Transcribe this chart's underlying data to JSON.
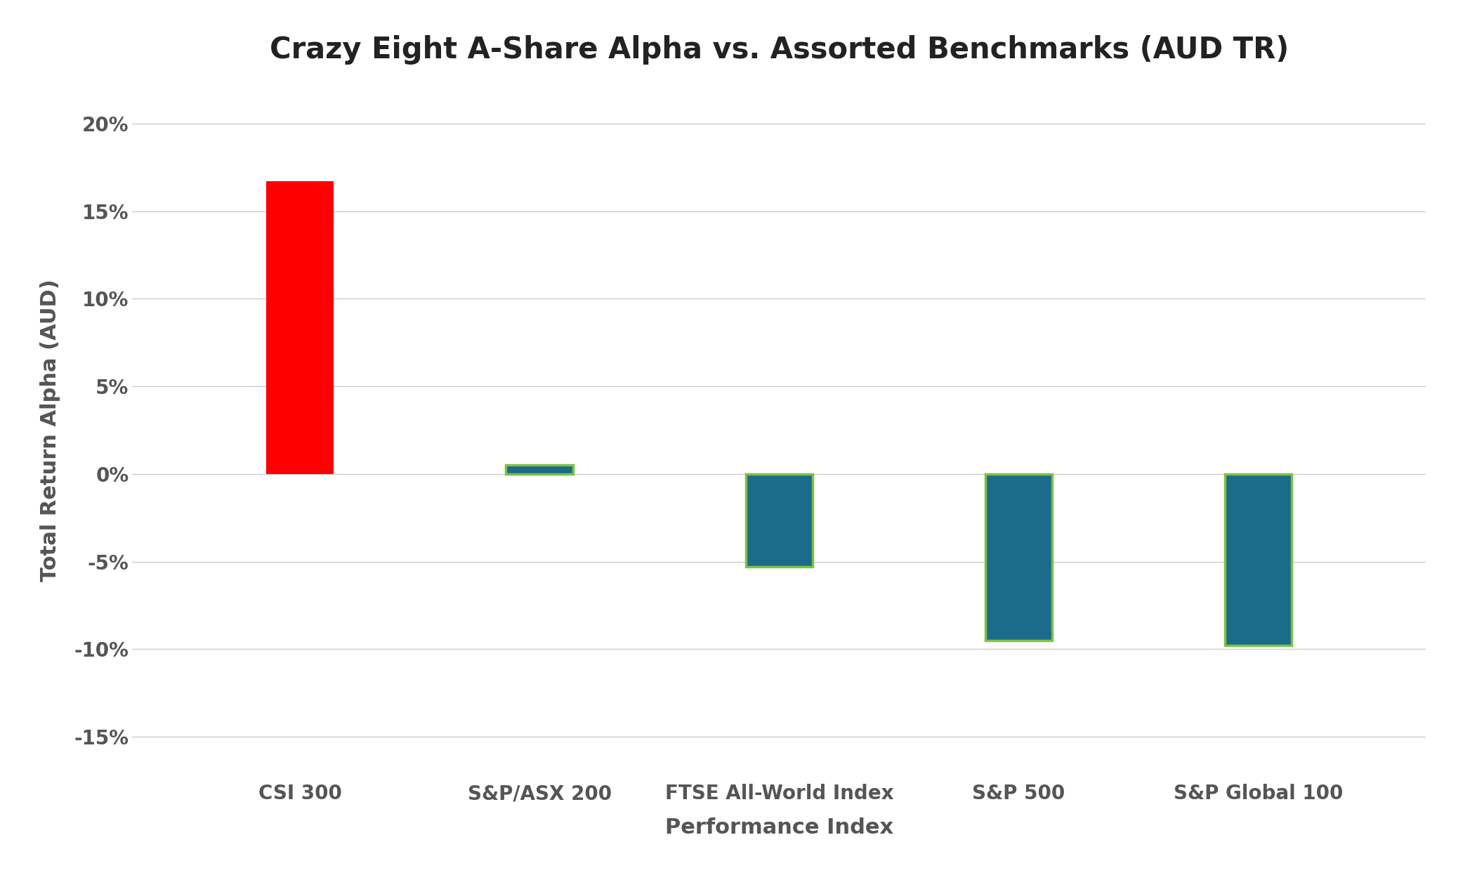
{
  "title": "Crazy Eight A-Share Alpha vs. Assorted Benchmarks (AUD TR)",
  "xlabel": "Performance Index",
  "ylabel": "Total Return Alpha (AUD)",
  "categories": [
    "CSI 300",
    "S&P/ASX 200",
    "FTSE All-World Index",
    "S&P 500",
    "S&P Global 100"
  ],
  "values": [
    0.167,
    0.005,
    -0.053,
    -0.095,
    -0.098
  ],
  "bar_colors": [
    "#FF0000",
    "#1B6B8A",
    "#1B6B8A",
    "#1B6B8A",
    "#1B6B8A"
  ],
  "bar_edgecolors": [
    "none",
    "#7DC242",
    "#7DC242",
    "#7DC242",
    "#7DC242"
  ],
  "bar_linewidths": [
    0,
    2.5,
    2.5,
    2.5,
    2.5
  ],
  "ylim": [
    -0.175,
    0.225
  ],
  "yticks": [
    -0.15,
    -0.1,
    -0.05,
    0.0,
    0.05,
    0.1,
    0.15,
    0.2
  ],
  "ytick_labels": [
    "-15%",
    "-10%",
    "-5%",
    "0%",
    "5%",
    "10%",
    "15%",
    "20%"
  ],
  "background_color": "#FFFFFF",
  "title_fontsize": 30,
  "label_fontsize": 22,
  "tick_fontsize": 20,
  "bar_width": 0.28,
  "grid_color": "#CCCCCC",
  "tick_color": "#555555",
  "title_color": "#222222"
}
